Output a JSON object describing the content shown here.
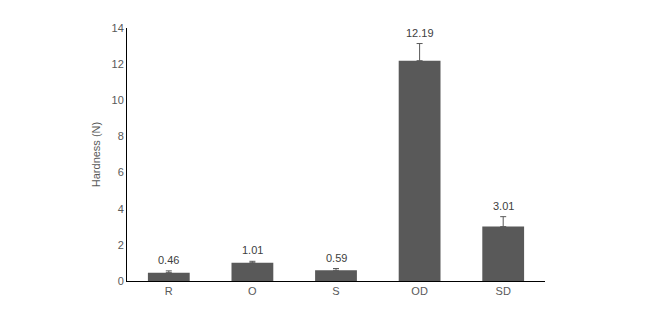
{
  "chart_data": {
    "type": "bar",
    "y_label": "Hardness (N)",
    "categories": [
      "R",
      "O",
      "S",
      "OD",
      "SD"
    ],
    "values": [
      0.46,
      1.01,
      0.59,
      12.19,
      3.01
    ],
    "errors": [
      0.1,
      0.08,
      0.1,
      0.95,
      0.55
    ],
    "color": "#595959",
    "ylim": [
      0,
      14
    ],
    "yticks": [
      0,
      2,
      4,
      6,
      8,
      10,
      12,
      14
    ],
    "grid": false,
    "data_labels": true
  }
}
